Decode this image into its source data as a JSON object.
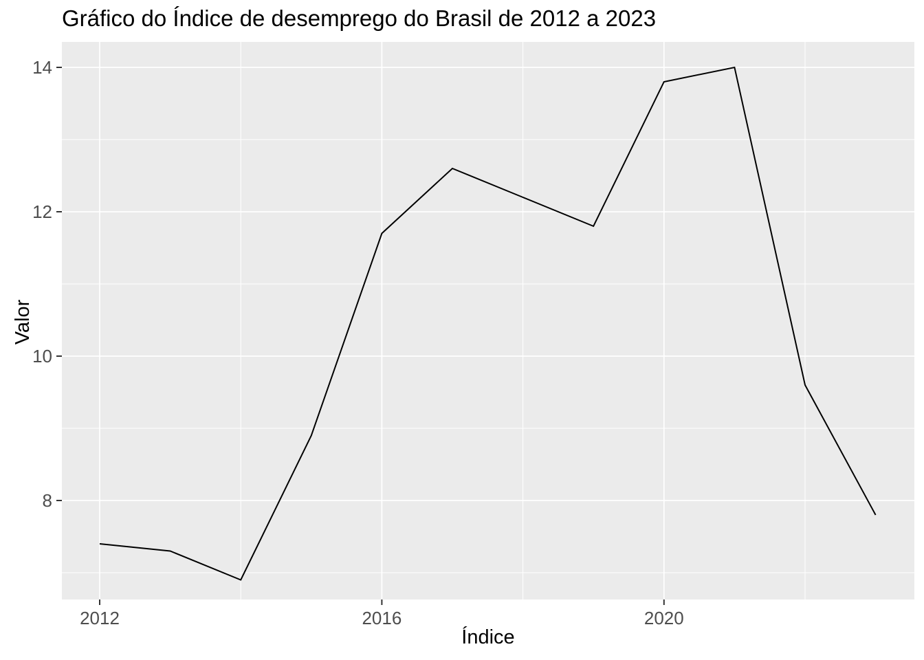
{
  "chart_data": {
    "type": "line",
    "title": "Gráfico do Índice de desemprego do Brasil de 2012 a 2023",
    "xlabel": "Índice",
    "ylabel": "Valor",
    "x": [
      2012,
      2013,
      2014,
      2015,
      2016,
      2017,
      2018,
      2019,
      2020,
      2021,
      2022,
      2023
    ],
    "values": [
      7.4,
      7.3,
      6.9,
      8.9,
      11.7,
      12.6,
      12.2,
      11.8,
      13.8,
      14.0,
      9.6,
      7.8
    ],
    "series_name": "Índice de desemprego",
    "x_ticks": [
      2012,
      2016,
      2020
    ],
    "x_minor_ticks": [
      2014,
      2018,
      2022
    ],
    "y_ticks": [
      8,
      10,
      12,
      14
    ],
    "y_minor_ticks": [
      7,
      9,
      11,
      13
    ],
    "xlim": [
      2011.46,
      2023.55
    ],
    "ylim": [
      6.63,
      14.35
    ],
    "grid": "on",
    "legend": "none",
    "colors": {
      "line": "#000000",
      "panel_background": "#EBEBEB",
      "gridline": "#FFFFFF",
      "tick_label": "#4D4D4D",
      "tick_mark": "#333333",
      "title_text": "#000000",
      "figure_background": "#FFFFFF"
    }
  }
}
